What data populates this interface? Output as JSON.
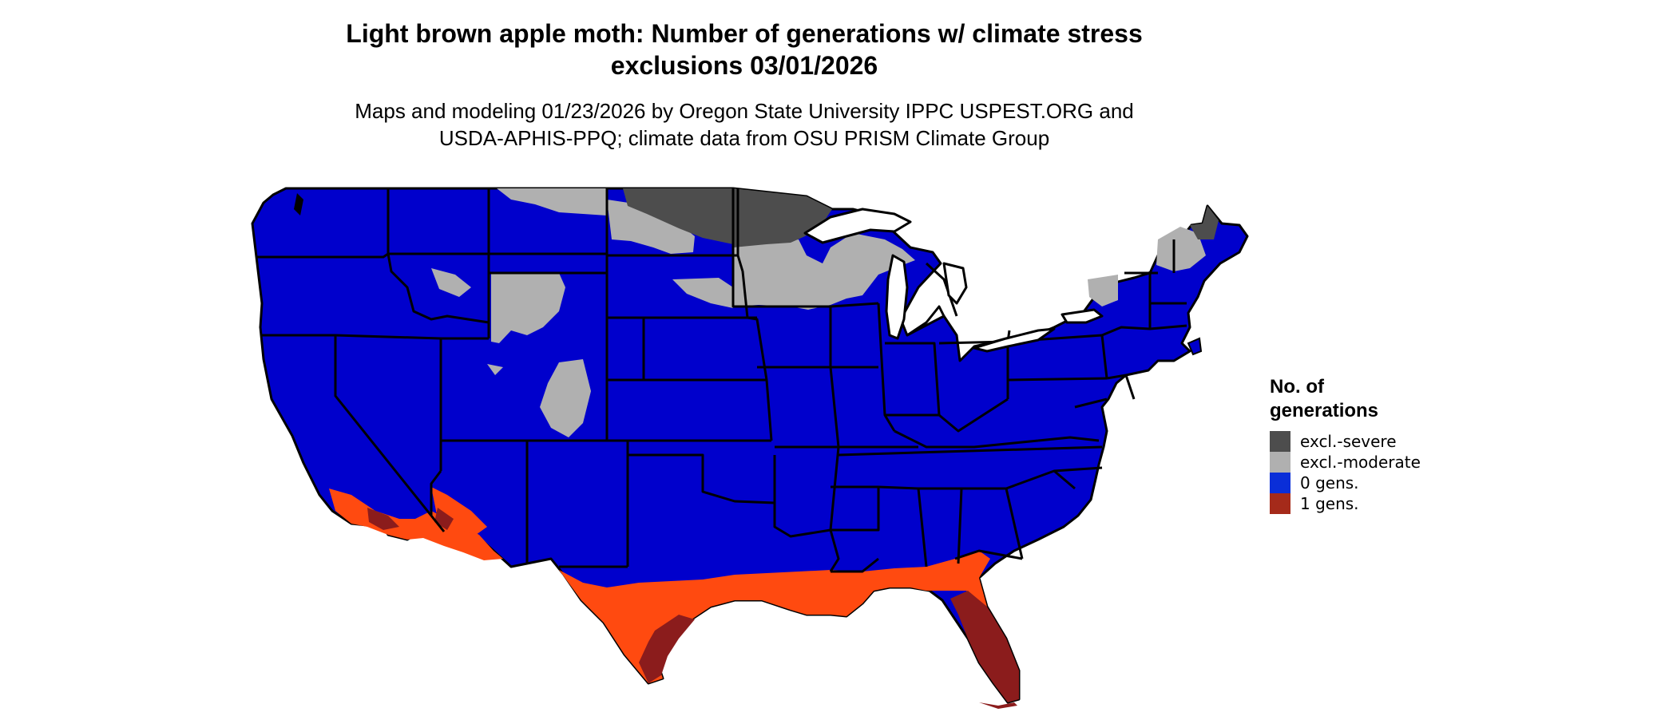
{
  "title": {
    "line1": "Light brown apple moth: Number of generations w/ climate stress",
    "line2": "exclusions 03/01/2026"
  },
  "subtitle": {
    "line1": "Maps and modeling 01/23/2026 by Oregon State University IPPC USPEST.ORG and",
    "line2": "USDA-APHIS-PPQ; climate data from OSU PRISM Climate Group"
  },
  "legend": {
    "title_line1": "No. of",
    "title_line2": "generations",
    "items": [
      {
        "label": "excl.-severe",
        "color": "#4d4d4d"
      },
      {
        "label": "excl.-moderate",
        "color": "#b0b0b0"
      },
      {
        "label": "0 gens.",
        "color": "#0a2ed8"
      },
      {
        "label": "1 gens.",
        "color": "#a52a1a"
      }
    ]
  },
  "colors": {
    "zero_gens_fill": "#0000cc",
    "one_gen_light": "#ff4a10",
    "one_gen_dark": "#8b1c1c",
    "state_border": "#000000"
  }
}
